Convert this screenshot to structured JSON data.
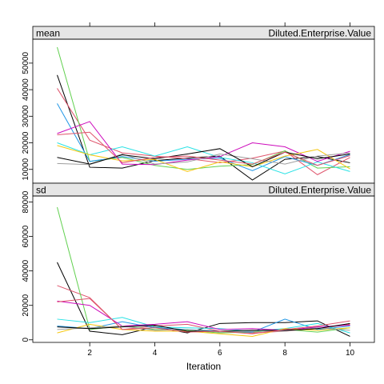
{
  "chart_data": [
    {
      "type": "line",
      "panel_label": "mean",
      "variable_label": "Diluted.Enterprise.Value",
      "x": [
        1,
        2,
        3,
        4,
        5,
        6,
        7,
        8,
        9,
        10
      ],
      "xlim": [
        0.25,
        10.75
      ],
      "xticks": [
        2,
        4,
        6,
        8,
        10
      ],
      "ylim": [
        4800,
        59000
      ],
      "yticks": [
        10000,
        20000,
        30000,
        40000,
        50000
      ],
      "xlabel": "Iteration",
      "grid": false,
      "series": [
        {
          "color": "#000000",
          "values": [
            45500,
            10800,
            10500,
            13300,
            14300,
            15000,
            6000,
            13800,
            14800,
            12500
          ]
        },
        {
          "color": "#DF536B",
          "values": [
            40500,
            21000,
            16200,
            15000,
            14100,
            12500,
            14200,
            16900,
            8000,
            14500
          ]
        },
        {
          "color": "#61D04F",
          "values": [
            56000,
            13000,
            14500,
            11500,
            10000,
            11200,
            11800,
            17000,
            10500,
            11000
          ]
        },
        {
          "color": "#2297E6",
          "values": [
            34800,
            13000,
            14800,
            13100,
            13800,
            14200,
            9500,
            14800,
            11500,
            15600
          ]
        },
        {
          "color": "#28E2E5",
          "values": [
            20000,
            15500,
            18500,
            15000,
            18500,
            14500,
            12500,
            8300,
            12800,
            9200
          ]
        },
        {
          "color": "#CD0BBC",
          "values": [
            23500,
            28000,
            12000,
            11800,
            13500,
            14800,
            20000,
            18500,
            13000,
            16800
          ]
        },
        {
          "color": "#F5C710",
          "values": [
            19000,
            15500,
            13200,
            13700,
            9200,
            12800,
            11000,
            15000,
            17500,
            10200
          ]
        },
        {
          "color": "#9E9E9E",
          "values": [
            12200,
            11800,
            15800,
            12000,
            12800,
            15800,
            14000,
            12000,
            15000,
            16200
          ]
        },
        {
          "color": "#000000",
          "values": [
            14500,
            12000,
            15500,
            14000,
            15800,
            17800,
            11000,
            16500,
            14000,
            15800
          ]
        },
        {
          "color": "#DF536B",
          "values": [
            23000,
            24000,
            12500,
            14500,
            15000,
            13500,
            12000,
            16500,
            11500,
            15200
          ]
        }
      ]
    },
    {
      "type": "line",
      "panel_label": "sd",
      "variable_label": "Diluted.Enterprise.Value",
      "x": [
        1,
        2,
        3,
        4,
        5,
        6,
        7,
        8,
        9,
        10
      ],
      "xlim": [
        0.25,
        10.75
      ],
      "xticks": [
        2,
        4,
        6,
        8,
        10
      ],
      "ylim": [
        -1500,
        83500
      ],
      "yticks": [
        0,
        20000,
        40000,
        60000,
        80000
      ],
      "xlabel": "Iteration",
      "grid": false,
      "series": [
        {
          "color": "#000000",
          "values": [
            45000,
            5000,
            3000,
            7500,
            4000,
            9500,
            10000,
            10000,
            11000,
            2000
          ]
        },
        {
          "color": "#DF536B",
          "values": [
            31500,
            24500,
            6000,
            8000,
            9000,
            5000,
            4000,
            5000,
            6500,
            9000
          ]
        },
        {
          "color": "#61D04F",
          "values": [
            77000,
            6000,
            8000,
            6000,
            5500,
            4000,
            4500,
            6000,
            4500,
            7000
          ]
        },
        {
          "color": "#2297E6",
          "values": [
            8000,
            6500,
            10500,
            7000,
            6000,
            5000,
            4500,
            12000,
            6000,
            8000
          ]
        },
        {
          "color": "#28E2E5",
          "values": [
            12000,
            10000,
            13000,
            7500,
            7000,
            6500,
            5000,
            6500,
            9500,
            4000
          ]
        },
        {
          "color": "#CD0BBC",
          "values": [
            22500,
            20000,
            8000,
            9000,
            10500,
            6000,
            6500,
            5500,
            7500,
            8500
          ]
        },
        {
          "color": "#F5C710",
          "values": [
            4000,
            9000,
            6000,
            5000,
            5000,
            3500,
            2000,
            6500,
            5500,
            7000
          ]
        },
        {
          "color": "#9E9E9E",
          "values": [
            6000,
            7000,
            8000,
            5500,
            6000,
            4500,
            5000,
            5000,
            7000,
            5500
          ]
        },
        {
          "color": "#000000",
          "values": [
            7500,
            6500,
            7500,
            8500,
            5000,
            5000,
            5500,
            5500,
            6500,
            9500
          ]
        },
        {
          "color": "#DF536B",
          "values": [
            22000,
            24000,
            6000,
            7000,
            4500,
            5000,
            3500,
            6000,
            8000,
            11000
          ]
        }
      ]
    }
  ]
}
